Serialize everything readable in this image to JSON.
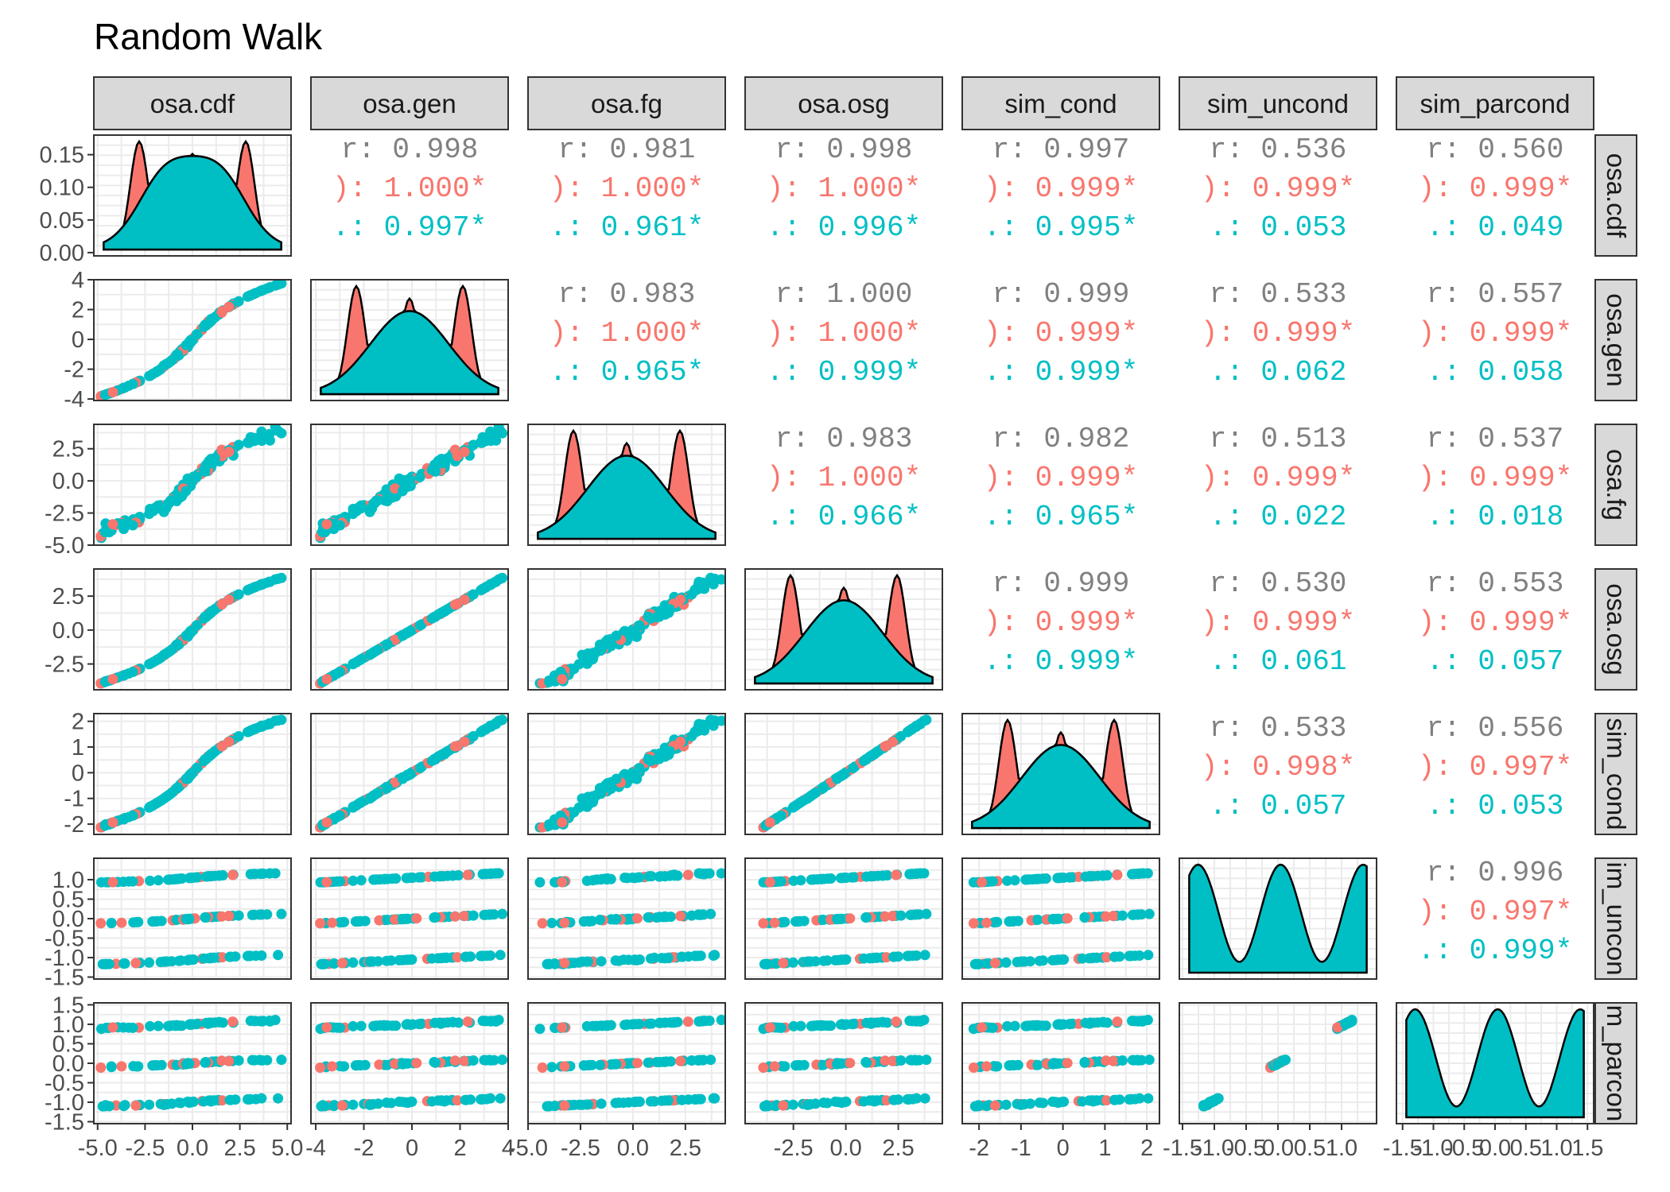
{
  "chart_data": {
    "type": "scatter",
    "title": "Random Walk",
    "variables": [
      "osa.cdf",
      "osa.gen",
      "osa.fg",
      "osa.osg",
      "sim_cond",
      "sim_uncond",
      "sim_parcond"
    ],
    "row_strip_labels": [
      "osa.cdf",
      "osa.gen",
      "osa.fg",
      "osa.osg",
      "sim_cond",
      "im_uncon",
      "m_parcon"
    ],
    "groups": [
      {
        "name": "group-1",
        "color": "#F8766D"
      },
      {
        "name": "group-2",
        "color": "#00BFC4"
      }
    ],
    "overall_color": "#808080",
    "x_ranges": [
      [
        -5.2,
        5.2
      ],
      [
        -4.2,
        4.0
      ],
      [
        -5.0,
        4.4
      ],
      [
        -4.8,
        4.6
      ],
      [
        -2.4,
        2.3
      ],
      [
        -1.55,
        1.55
      ],
      [
        -1.6,
        1.6
      ]
    ],
    "y_ranges": [
      [
        -0.005,
        0.18
      ],
      [
        -4.1,
        4.0
      ],
      [
        -5.0,
        4.4
      ],
      [
        -4.4,
        4.5
      ],
      [
        -2.4,
        2.3
      ],
      [
        -1.55,
        1.55
      ],
      [
        -1.55,
        1.55
      ]
    ],
    "x_ticks": [
      [
        "-5.0",
        "-2.5",
        "0.0",
        "2.5",
        "5.0"
      ],
      [
        "-4",
        "-2",
        "0",
        "2",
        "4"
      ],
      [
        "-5.0",
        "-2.5",
        "0.0",
        "2.5"
      ],
      [
        "-2.5",
        "0.0",
        "2.5"
      ],
      [
        "-2",
        "-1",
        "0",
        "1",
        "2"
      ],
      [
        "-1.5",
        "-1.0",
        "-0.5",
        "0.0",
        "0.5",
        "1.0"
      ],
      [
        "-1.5",
        "-1.0",
        "-0.5",
        "0.0",
        "0.5",
        "1.0",
        "1.5"
      ]
    ],
    "y_ticks": [
      [
        "0.00",
        "0.05",
        "0.10",
        "0.15"
      ],
      [
        "-4",
        "-2",
        "0",
        "2",
        "4"
      ],
      [
        "-5.0",
        "-2.5",
        "0.0",
        "2.5"
      ],
      [
        "-2.5",
        "0.0",
        "2.5"
      ],
      [
        "-2",
        "-1",
        "0",
        "1",
        "2"
      ],
      [
        "-1.5",
        "-1.0",
        "-0.5",
        "0.0",
        "0.5",
        "1.0"
      ],
      [
        "-1.5",
        "-1.0",
        "-0.5",
        "0.0",
        "0.5",
        "1.0",
        "1.5"
      ]
    ],
    "correlations": [
      {
        "row": 0,
        "col": 1,
        "overall": "r: 0.998",
        "group1": "): 1.000*",
        "group2": ".: 0.997*"
      },
      {
        "row": 0,
        "col": 2,
        "overall": "r: 0.981",
        "group1": "): 1.000*",
        "group2": ".: 0.961*"
      },
      {
        "row": 0,
        "col": 3,
        "overall": "r: 0.998",
        "group1": "): 1.000*",
        "group2": ".: 0.996*"
      },
      {
        "row": 0,
        "col": 4,
        "overall": "r: 0.997",
        "group1": "): 0.999*",
        "group2": ".: 0.995*"
      },
      {
        "row": 0,
        "col": 5,
        "overall": "r: 0.536",
        "group1": "): 0.999*",
        "group2": ".: 0.053"
      },
      {
        "row": 0,
        "col": 6,
        "overall": "r: 0.560",
        "group1": "): 0.999*",
        "group2": ".: 0.049"
      },
      {
        "row": 1,
        "col": 2,
        "overall": "r: 0.983",
        "group1": "): 1.000*",
        "group2": ".: 0.965*"
      },
      {
        "row": 1,
        "col": 3,
        "overall": "r: 1.000",
        "group1": "): 1.000*",
        "group2": ".: 0.999*"
      },
      {
        "row": 1,
        "col": 4,
        "overall": "r: 0.999",
        "group1": "): 0.999*",
        "group2": ".: 0.999*"
      },
      {
        "row": 1,
        "col": 5,
        "overall": "r: 0.533",
        "group1": "): 0.999*",
        "group2": ".: 0.062"
      },
      {
        "row": 1,
        "col": 6,
        "overall": "r: 0.557",
        "group1": "): 0.999*",
        "group2": ".: 0.058"
      },
      {
        "row": 2,
        "col": 3,
        "overall": "r: 0.983",
        "group1": "): 1.000*",
        "group2": ".: 0.966*"
      },
      {
        "row": 2,
        "col": 4,
        "overall": "r: 0.982",
        "group1": "): 0.999*",
        "group2": ".: 0.965*"
      },
      {
        "row": 2,
        "col": 5,
        "overall": "r: 0.513",
        "group1": "): 0.999*",
        "group2": ".: 0.022"
      },
      {
        "row": 2,
        "col": 6,
        "overall": "r: 0.537",
        "group1": "): 0.999*",
        "group2": ".: 0.018"
      },
      {
        "row": 3,
        "col": 4,
        "overall": "r: 0.999",
        "group1": "): 0.999*",
        "group2": ".: 0.999*"
      },
      {
        "row": 3,
        "col": 5,
        "overall": "r: 0.530",
        "group1": "): 0.999*",
        "group2": ".: 0.061"
      },
      {
        "row": 3,
        "col": 6,
        "overall": "r: 0.553",
        "group1": "): 0.999*",
        "group2": ".: 0.057"
      },
      {
        "row": 4,
        "col": 5,
        "overall": "r: 0.533",
        "group1": "): 0.998*",
        "group2": ".: 0.057"
      },
      {
        "row": 4,
        "col": 6,
        "overall": "r: 0.556",
        "group1": "): 0.997*",
        "group2": ".: 0.053"
      },
      {
        "row": 5,
        "col": 6,
        "overall": "r: 0.996",
        "group1": "): 0.997*",
        "group2": ".: 0.999*"
      }
    ],
    "legend": "none",
    "grid": true
  }
}
